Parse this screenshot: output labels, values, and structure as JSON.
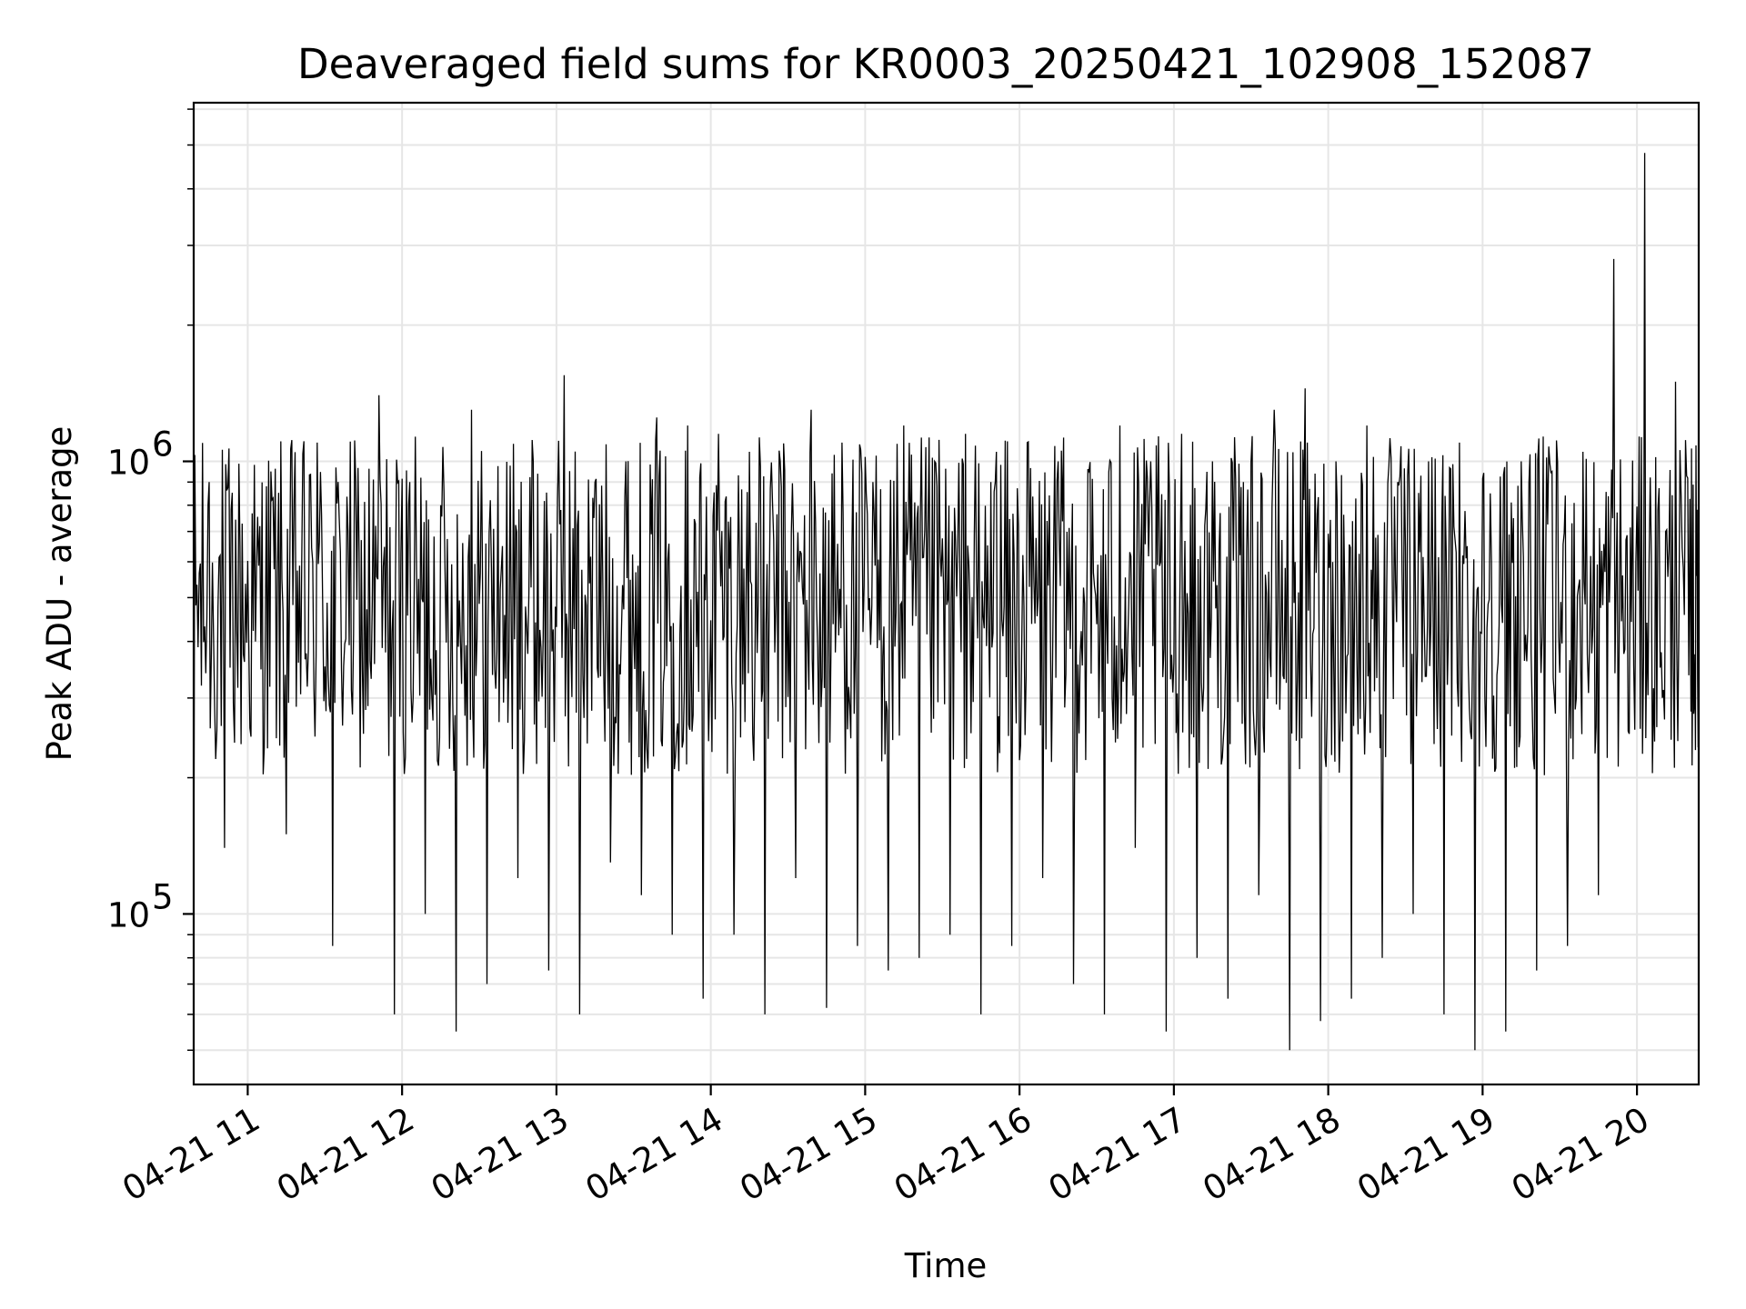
{
  "chart_data": {
    "type": "line",
    "title": "Deaveraged field sums for KR0003_20250421_102908_152087",
    "xlabel": "Time",
    "ylabel": "Peak ADU - average",
    "yscale": "log",
    "ylim": [
      42000,
      6200000
    ],
    "xlim": [
      "2025-04-21 10:39",
      "2025-04-21 20:24"
    ],
    "grid": true,
    "x_tick_labels": [
      "04-21 11",
      "04-21 12",
      "04-21 13",
      "04-21 14",
      "04-21 15",
      "04-21 16",
      "04-21 17",
      "04-21 18",
      "04-21 19",
      "04-21 20"
    ],
    "y_tick_labels": [
      {
        "base": "10",
        "exp": "5",
        "value": 100000
      },
      {
        "base": "10",
        "exp": "6",
        "value": 1000000
      }
    ],
    "line_color": "#000000",
    "series": [
      {
        "x": [
          "2025-04-21 10:39",
          "2025-04-21 10:45",
          "2025-04-21 10:51",
          "2025-04-21 10:57",
          "2025-04-21 11:03",
          "2025-04-21 11:09",
          "2025-04-21 11:15",
          "2025-04-21 11:21",
          "2025-04-21 11:27",
          "2025-04-21 11:33",
          "2025-04-21 11:39",
          "2025-04-21 11:45",
          "2025-04-21 11:51",
          "2025-04-21 11:57",
          "2025-04-21 12:03",
          "2025-04-21 12:09",
          "2025-04-21 12:15",
          "2025-04-21 12:21",
          "2025-04-21 12:27",
          "2025-04-21 12:33",
          "2025-04-21 12:39",
          "2025-04-21 12:45",
          "2025-04-21 12:51",
          "2025-04-21 12:57",
          "2025-04-21 13:03",
          "2025-04-21 13:09",
          "2025-04-21 13:15",
          "2025-04-21 13:21",
          "2025-04-21 13:27",
          "2025-04-21 13:33",
          "2025-04-21 13:39",
          "2025-04-21 13:45",
          "2025-04-21 13:51",
          "2025-04-21 13:57",
          "2025-04-21 14:03",
          "2025-04-21 14:09",
          "2025-04-21 14:15",
          "2025-04-21 14:21",
          "2025-04-21 14:27",
          "2025-04-21 14:33",
          "2025-04-21 14:39",
          "2025-04-21 14:45",
          "2025-04-21 14:51",
          "2025-04-21 14:57",
          "2025-04-21 15:03",
          "2025-04-21 15:09",
          "2025-04-21 15:15",
          "2025-04-21 15:21",
          "2025-04-21 15:27",
          "2025-04-21 15:33",
          "2025-04-21 15:39",
          "2025-04-21 15:45",
          "2025-04-21 15:51",
          "2025-04-21 15:57",
          "2025-04-21 16:03",
          "2025-04-21 16:09",
          "2025-04-21 16:15",
          "2025-04-21 16:21",
          "2025-04-21 16:27",
          "2025-04-21 16:33",
          "2025-04-21 16:39",
          "2025-04-21 16:45",
          "2025-04-21 16:51",
          "2025-04-21 16:57",
          "2025-04-21 17:03",
          "2025-04-21 17:09",
          "2025-04-21 17:15",
          "2025-04-21 17:21",
          "2025-04-21 17:27",
          "2025-04-21 17:33",
          "2025-04-21 17:39",
          "2025-04-21 17:45",
          "2025-04-21 17:51",
          "2025-04-21 17:57",
          "2025-04-21 18:03",
          "2025-04-21 18:09",
          "2025-04-21 18:15",
          "2025-04-21 18:21",
          "2025-04-21 18:27",
          "2025-04-21 18:33",
          "2025-04-21 18:39",
          "2025-04-21 18:45",
          "2025-04-21 18:51",
          "2025-04-21 18:57",
          "2025-04-21 19:03",
          "2025-04-21 19:09",
          "2025-04-21 19:15",
          "2025-04-21 19:21",
          "2025-04-21 19:27",
          "2025-04-21 19:33",
          "2025-04-21 19:39",
          "2025-04-21 19:45",
          "2025-04-21 19:51",
          "2025-04-21 19:57",
          "2025-04-21 20:03",
          "2025-04-21 20:09",
          "2025-04-21 20:15",
          "2025-04-21 20:21",
          "2025-04-21 20:24"
        ],
        "y": [
          90000,
          900000,
          140000,
          650000,
          400000,
          950000,
          150000,
          600000,
          1100000,
          85000,
          700000,
          250000,
          1400000,
          60000,
          900000,
          100000,
          800000,
          55000,
          1300000,
          70000,
          650000,
          120000,
          1000000,
          75000,
          1550000,
          60000,
          900000,
          130000,
          1000000,
          110000,
          1250000,
          90000,
          1200000,
          65000,
          1150000,
          90000,
          1050000,
          60000,
          1000000,
          120000,
          1300000,
          62000,
          1100000,
          85000,
          900000,
          75000,
          1200000,
          80000,
          1000000,
          90000,
          1150000,
          60000,
          1050000,
          85000,
          1100000,
          120000,
          1000000,
          70000,
          950000,
          60000,
          1200000,
          140000,
          1000000,
          55000,
          1150000,
          80000,
          1000000,
          65000,
          900000,
          110000,
          1300000,
          50000,
          1450000,
          58000,
          1000000,
          65000,
          1200000,
          80000,
          900000,
          100000,
          1000000,
          60000,
          1100000,
          50000,
          850000,
          55000,
          1000000,
          75000,
          950000,
          85000,
          1050000,
          110000,
          2800000,
          250000,
          4800000,
          350000,
          1500000,
          280000,
          1100000
        ]
      }
    ]
  }
}
